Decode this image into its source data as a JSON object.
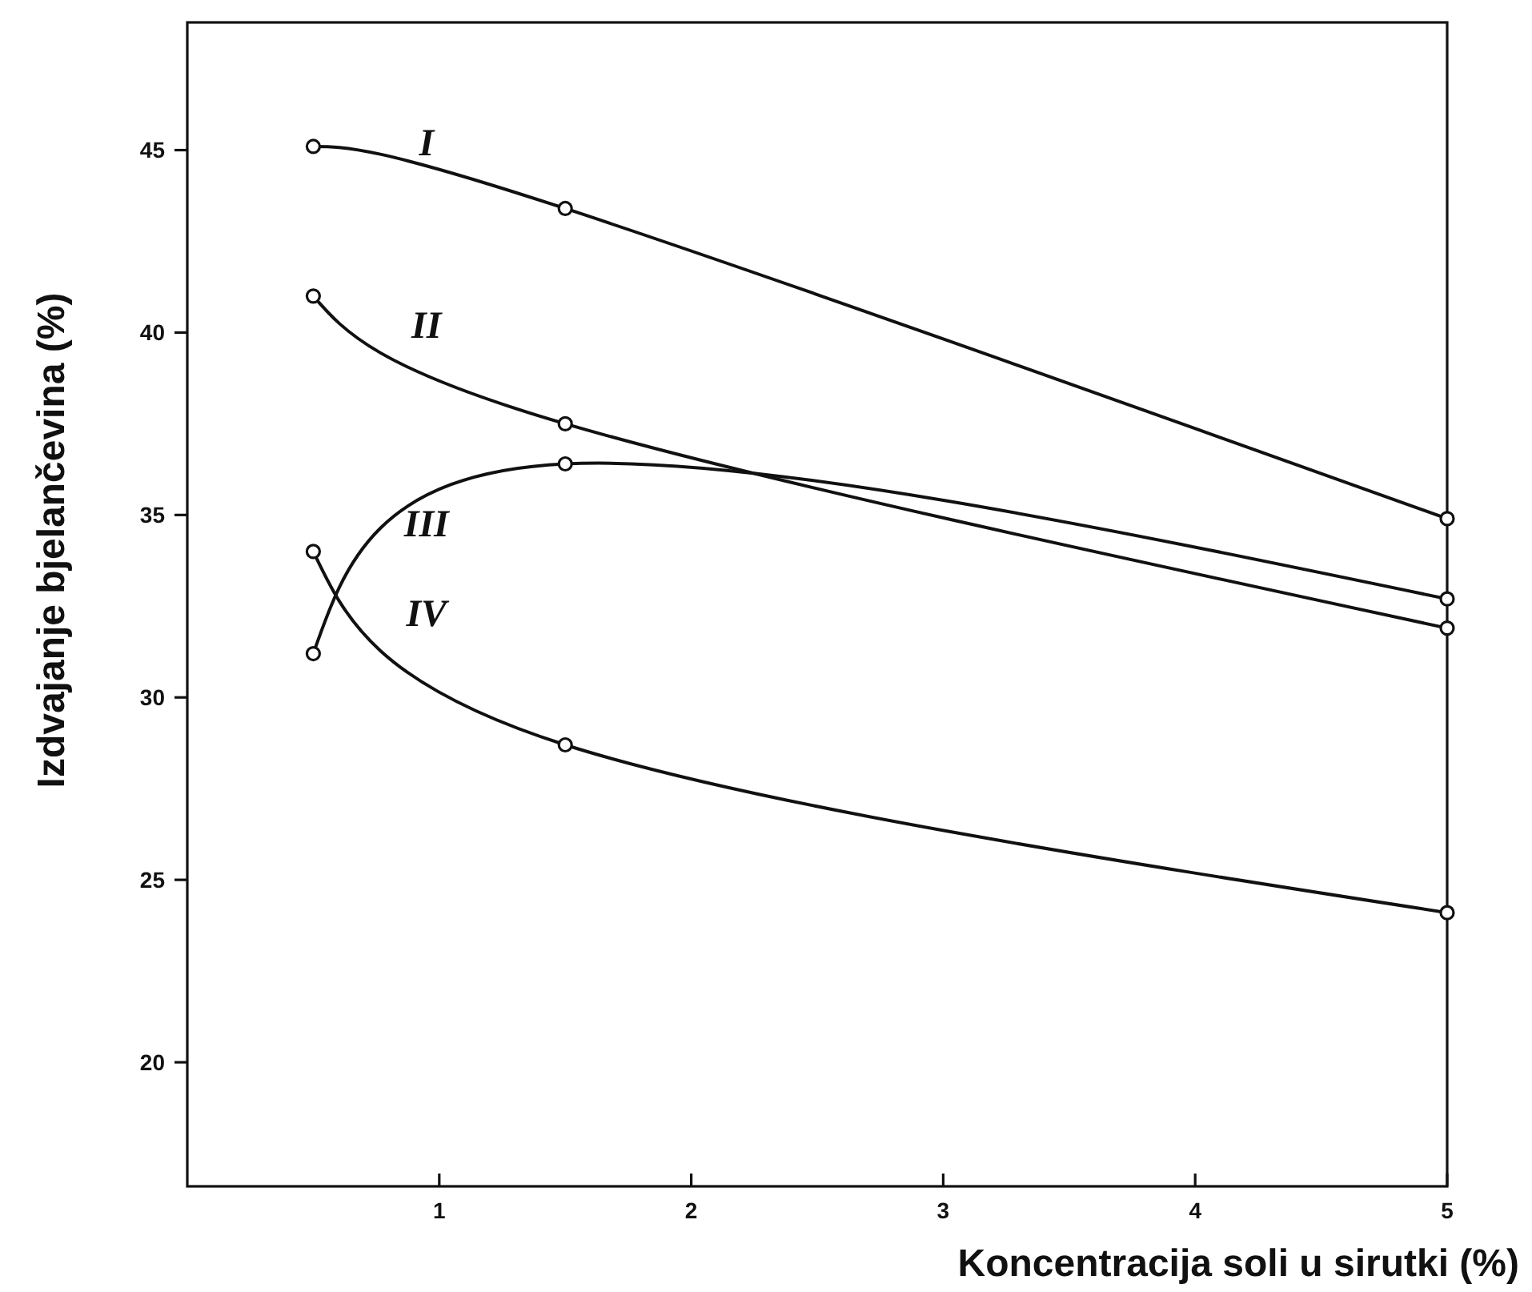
{
  "chart_data": {
    "type": "line",
    "xlabel": "Koncentracija  soli u sirutki (%)",
    "ylabel": "Izdvajanje bjelančevina  (%)",
    "x": [
      0.5,
      1.5,
      5
    ],
    "xlim": [
      0,
      5
    ],
    "ylim": [
      16.6,
      48.5
    ],
    "xticks": [
      1,
      2,
      3,
      4,
      5
    ],
    "yticks": [
      20,
      25,
      30,
      35,
      40,
      45
    ],
    "marker": "circle",
    "line_style": "solid",
    "grid": false,
    "series": [
      {
        "name": "I",
        "color": "#111111",
        "values": [
          45.1,
          43.4,
          34.9
        ]
      },
      {
        "name": "II",
        "color": "#111111",
        "values": [
          41.0,
          37.5,
          31.9
        ]
      },
      {
        "name": "III",
        "color": "#111111",
        "values": [
          31.2,
          36.4,
          32.7
        ]
      },
      {
        "name": "IV",
        "color": "#111111",
        "values": [
          34.0,
          28.7,
          24.1
        ]
      }
    ]
  }
}
